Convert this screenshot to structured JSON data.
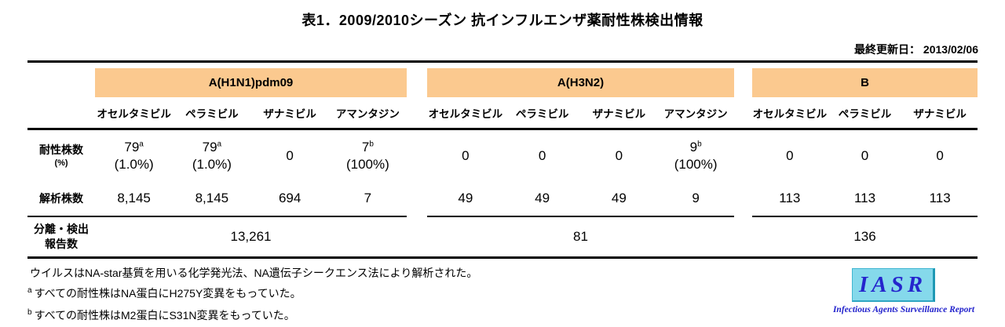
{
  "title": "表1．2009/2010シーズン 抗インフルエンザ薬耐性株検出情報",
  "updated": {
    "label": "最終更新日：",
    "date": "2013/02/06"
  },
  "table": {
    "row_labels": {
      "resistant": "耐性株数",
      "resistant_unit": "(%)",
      "analyzed": "解析株数",
      "reported_l1": "分離・検出",
      "reported_l2": "報告数"
    },
    "groups": [
      {
        "name": "A(H1N1)pdm09",
        "drugs": [
          "オセルタミビル",
          "ペラミビル",
          "ザナミビル",
          "アマンタジン"
        ],
        "resistant": [
          {
            "value": "79",
            "sup": "a",
            "pct": "(1.0%)"
          },
          {
            "value": "79",
            "sup": "a",
            "pct": "(1.0%)"
          },
          {
            "value": "0",
            "sup": "",
            "pct": ""
          },
          {
            "value": "7",
            "sup": "b",
            "pct": "(100%)"
          }
        ],
        "analyzed": [
          "8,145",
          "8,145",
          "694",
          "7"
        ],
        "reported": "13,261"
      },
      {
        "name": "A(H3N2)",
        "drugs": [
          "オセルタミビル",
          "ペラミビル",
          "ザナミビル",
          "アマンタジン"
        ],
        "resistant": [
          {
            "value": "0",
            "sup": "",
            "pct": ""
          },
          {
            "value": "0",
            "sup": "",
            "pct": ""
          },
          {
            "value": "0",
            "sup": "",
            "pct": ""
          },
          {
            "value": "9",
            "sup": "b",
            "pct": "(100%)"
          }
        ],
        "analyzed": [
          "49",
          "49",
          "49",
          "9"
        ],
        "reported": "81"
      },
      {
        "name": "B",
        "drugs": [
          "オセルタミビル",
          "ペラミビル",
          "ザナミビル"
        ],
        "resistant": [
          {
            "value": "0",
            "sup": "",
            "pct": ""
          },
          {
            "value": "0",
            "sup": "",
            "pct": ""
          },
          {
            "value": "0",
            "sup": "",
            "pct": ""
          }
        ],
        "analyzed": [
          "113",
          "113",
          "113"
        ],
        "reported": "136"
      }
    ]
  },
  "footnotes": [
    {
      "sup": "",
      "text": "ウイルスはNA-star基質を用いる化学発光法、NA遺伝子シークエンス法により解析された。"
    },
    {
      "sup": "a",
      "text": "すべての耐性株はNA蛋白にH275Y変異をもっていた。"
    },
    {
      "sup": "b",
      "text": "すべての耐性株はM2蛋白にS31N変異をもっていた。"
    }
  ],
  "logo": {
    "acronym": "IASR",
    "subtitle": "Infectious Agents Surveillance Report"
  },
  "colors": {
    "group_header_fill": "#FBC98F",
    "logo_fill": "#85D9EB",
    "logo_text": "#2525CD",
    "rule_line": "#000000"
  }
}
